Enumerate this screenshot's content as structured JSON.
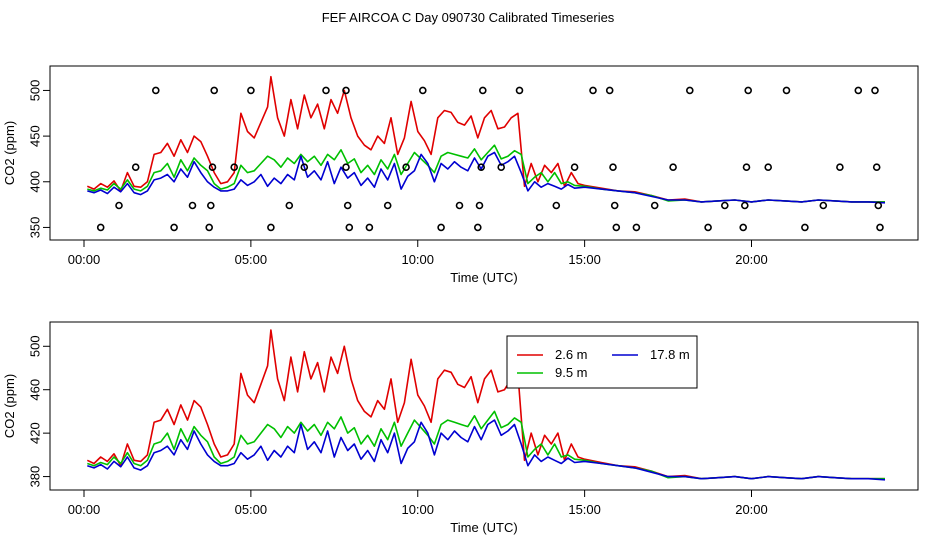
{
  "title": "FEF AIRCOA C  Day 090730  Calibrated Timeseries",
  "colors": {
    "s1": "#e00000",
    "s2": "#00c000",
    "s3": "#0000d0",
    "axis": "#000000"
  },
  "chart_data": [
    {
      "type": "line",
      "title": "FEF AIRCOA C  Day 090730  Calibrated Timeseries",
      "xlabel": "Time (UTC)",
      "ylabel": "CO2 (ppm)",
      "xlim": [
        0,
        24
      ],
      "ylim": [
        345,
        518
      ],
      "x_ticks": [
        0,
        5,
        10,
        15,
        20
      ],
      "x_tick_labels": [
        "00:00",
        "05:00",
        "10:00",
        "15:00",
        "20:00"
      ],
      "y_ticks": [
        350,
        400,
        450,
        500
      ],
      "y_tick_labels": [
        "350",
        "400",
        "450",
        "500"
      ],
      "legend": null,
      "series_ref": "shared",
      "markers": {
        "shape": "open-circle",
        "points": [
          [
            0.5,
            350
          ],
          [
            1.05,
            374
          ],
          [
            1.55,
            416
          ],
          [
            2.15,
            500
          ],
          [
            2.7,
            350
          ],
          [
            3.25,
            374
          ],
          [
            3.75,
            350
          ],
          [
            3.8,
            374
          ],
          [
            3.85,
            416
          ],
          [
            3.9,
            500
          ],
          [
            4.5,
            416
          ],
          [
            5.0,
            500
          ],
          [
            5.6,
            350
          ],
          [
            6.15,
            374
          ],
          [
            6.6,
            416
          ],
          [
            7.25,
            500
          ],
          [
            7.85,
            500
          ],
          [
            7.85,
            416
          ],
          [
            7.9,
            374
          ],
          [
            7.95,
            350
          ],
          [
            8.55,
            350
          ],
          [
            9.1,
            374
          ],
          [
            9.65,
            416
          ],
          [
            10.15,
            500
          ],
          [
            10.7,
            350
          ],
          [
            11.25,
            374
          ],
          [
            11.8,
            350
          ],
          [
            11.85,
            374
          ],
          [
            11.9,
            416
          ],
          [
            11.95,
            500
          ],
          [
            12.5,
            416
          ],
          [
            13.05,
            500
          ],
          [
            13.65,
            350
          ],
          [
            14.15,
            374
          ],
          [
            14.7,
            416
          ],
          [
            15.25,
            500
          ],
          [
            15.75,
            500
          ],
          [
            15.85,
            416
          ],
          [
            15.9,
            374
          ],
          [
            15.95,
            350
          ],
          [
            16.55,
            350
          ],
          [
            17.1,
            374
          ],
          [
            17.65,
            416
          ],
          [
            18.15,
            500
          ],
          [
            18.7,
            350
          ],
          [
            19.2,
            374
          ],
          [
            19.75,
            350
          ],
          [
            19.8,
            374
          ],
          [
            19.85,
            416
          ],
          [
            19.9,
            500
          ],
          [
            20.5,
            416
          ],
          [
            21.05,
            500
          ],
          [
            21.6,
            350
          ],
          [
            22.15,
            374
          ],
          [
            22.65,
            416
          ],
          [
            23.2,
            500
          ],
          [
            23.7,
            500
          ],
          [
            23.75,
            416
          ],
          [
            23.8,
            374
          ],
          [
            23.85,
            350
          ]
        ]
      }
    },
    {
      "type": "line",
      "title": "",
      "xlabel": "Time (UTC)",
      "ylabel": "CO2 (ppm)",
      "xlim": [
        0,
        24
      ],
      "ylim": [
        375,
        515
      ],
      "x_ticks": [
        0,
        5,
        10,
        15,
        20
      ],
      "x_tick_labels": [
        "00:00",
        "05:00",
        "10:00",
        "15:00",
        "20:00"
      ],
      "y_ticks": [
        380,
        420,
        460,
        500
      ],
      "y_tick_labels": [
        "380",
        "420",
        "460",
        "500"
      ],
      "legend": [
        "2.6 m",
        "9.5 m",
        "17.8 m"
      ],
      "legend_position": "top-right",
      "series_ref": "shared"
    }
  ],
  "series": [
    {
      "name": "2.6 m",
      "color": "#e00000",
      "x": [
        0.1,
        0.3,
        0.5,
        0.7,
        0.9,
        1.1,
        1.3,
        1.5,
        1.7,
        1.9,
        2.1,
        2.3,
        2.5,
        2.7,
        2.9,
        3.1,
        3.3,
        3.5,
        3.7,
        3.9,
        4.1,
        4.3,
        4.5,
        4.7,
        4.9,
        5.1,
        5.3,
        5.5,
        5.6,
        5.8,
        6.0,
        6.2,
        6.4,
        6.6,
        6.8,
        7.0,
        7.2,
        7.4,
        7.6,
        7.8,
        8.0,
        8.2,
        8.4,
        8.6,
        8.8,
        9.0,
        9.2,
        9.4,
        9.6,
        9.8,
        10.0,
        10.2,
        10.4,
        10.6,
        10.8,
        11.0,
        11.2,
        11.4,
        11.6,
        11.8,
        12.0,
        12.2,
        12.4,
        12.6,
        12.8,
        13.0,
        13.2,
        13.4,
        13.6,
        13.8,
        14.0,
        14.2,
        14.4,
        14.6,
        14.8,
        15.0,
        15.5,
        16.0,
        16.5,
        17.0,
        17.5,
        18.0,
        18.5,
        19.0,
        19.5,
        20.0,
        20.5,
        21.0,
        21.5,
        22.0,
        22.5,
        23.0,
        23.5,
        24.0
      ],
      "values": [
        395,
        392,
        398,
        394,
        401,
        390,
        410,
        395,
        394,
        400,
        430,
        432,
        442,
        428,
        446,
        432,
        450,
        444,
        428,
        410,
        398,
        400,
        410,
        475,
        455,
        448,
        465,
        482,
        515,
        470,
        450,
        490,
        458,
        495,
        470,
        485,
        458,
        490,
        475,
        500,
        470,
        450,
        440,
        435,
        450,
        442,
        470,
        430,
        448,
        488,
        455,
        445,
        430,
        470,
        478,
        476,
        465,
        462,
        472,
        448,
        470,
        478,
        458,
        460,
        470,
        475,
        395,
        420,
        400,
        418,
        410,
        420,
        395,
        410,
        398,
        396,
        393,
        390,
        389,
        385,
        380,
        381,
        378,
        379,
        380,
        378,
        380,
        379,
        378,
        380,
        379,
        378,
        378,
        378
      ]
    },
    {
      "name": "9.5 m",
      "color": "#00c000",
      "x": [
        0.1,
        0.3,
        0.5,
        0.7,
        0.9,
        1.1,
        1.3,
        1.5,
        1.7,
        1.9,
        2.1,
        2.3,
        2.5,
        2.7,
        2.9,
        3.1,
        3.3,
        3.5,
        3.7,
        3.9,
        4.1,
        4.3,
        4.5,
        4.7,
        4.9,
        5.1,
        5.3,
        5.5,
        5.7,
        5.9,
        6.1,
        6.3,
        6.5,
        6.7,
        6.9,
        7.1,
        7.3,
        7.5,
        7.7,
        7.9,
        8.1,
        8.3,
        8.5,
        8.7,
        8.9,
        9.1,
        9.3,
        9.5,
        9.7,
        9.9,
        10.1,
        10.3,
        10.5,
        10.7,
        10.9,
        11.1,
        11.3,
        11.5,
        11.7,
        11.9,
        12.1,
        12.3,
        12.5,
        12.7,
        12.9,
        13.1,
        13.3,
        13.5,
        13.7,
        13.9,
        14.1,
        14.3,
        14.5,
        14.7,
        15.0,
        15.5,
        16.0,
        16.5,
        17.0,
        17.5,
        18.0,
        18.5,
        19.0,
        19.5,
        20.0,
        20.5,
        21.0,
        21.5,
        22.0,
        22.5,
        23.0,
        23.5,
        24.0
      ],
      "values": [
        392,
        390,
        393,
        391,
        398,
        392,
        402,
        392,
        390,
        395,
        410,
        412,
        420,
        405,
        424,
        412,
        426,
        418,
        412,
        398,
        392,
        394,
        398,
        418,
        410,
        412,
        420,
        428,
        424,
        416,
        426,
        420,
        430,
        422,
        428,
        418,
        430,
        424,
        435,
        420,
        425,
        410,
        418,
        408,
        424,
        414,
        430,
        408,
        420,
        432,
        425,
        418,
        410,
        428,
        432,
        430,
        428,
        426,
        436,
        424,
        432,
        440,
        425,
        428,
        434,
        430,
        398,
        405,
        410,
        400,
        410,
        398,
        400,
        396,
        395,
        392,
        390,
        388,
        385,
        379,
        380,
        378,
        379,
        380,
        378,
        380,
        379,
        378,
        380,
        379,
        378,
        378,
        378
      ]
    },
    {
      "name": "17.8 m",
      "color": "#0000d0",
      "x": [
        0.1,
        0.3,
        0.5,
        0.7,
        0.9,
        1.1,
        1.3,
        1.5,
        1.7,
        1.9,
        2.1,
        2.3,
        2.5,
        2.7,
        2.9,
        3.1,
        3.3,
        3.5,
        3.7,
        3.9,
        4.1,
        4.3,
        4.5,
        4.7,
        4.9,
        5.1,
        5.3,
        5.5,
        5.7,
        5.9,
        6.1,
        6.3,
        6.5,
        6.7,
        6.9,
        7.1,
        7.3,
        7.5,
        7.7,
        7.9,
        8.1,
        8.3,
        8.5,
        8.7,
        8.9,
        9.1,
        9.3,
        9.5,
        9.7,
        9.9,
        10.1,
        10.3,
        10.5,
        10.7,
        10.9,
        11.1,
        11.3,
        11.5,
        11.7,
        11.9,
        12.1,
        12.3,
        12.5,
        12.7,
        12.9,
        13.1,
        13.3,
        13.5,
        13.7,
        13.9,
        14.1,
        14.3,
        14.5,
        14.7,
        15.0,
        15.5,
        16.0,
        16.5,
        17.0,
        17.5,
        18.0,
        18.5,
        19.0,
        19.5,
        20.0,
        20.5,
        21.0,
        21.5,
        22.0,
        22.5,
        23.0,
        23.5,
        24.0
      ],
      "values": [
        390,
        388,
        391,
        387,
        394,
        389,
        398,
        388,
        386,
        390,
        402,
        404,
        408,
        400,
        414,
        405,
        422,
        410,
        400,
        394,
        390,
        390,
        392,
        402,
        396,
        400,
        408,
        395,
        404,
        398,
        408,
        402,
        428,
        405,
        412,
        402,
        422,
        398,
        416,
        404,
        410,
        396,
        404,
        394,
        414,
        402,
        420,
        392,
        406,
        412,
        430,
        420,
        400,
        420,
        414,
        422,
        416,
        412,
        426,
        414,
        428,
        432,
        418,
        422,
        428,
        410,
        390,
        400,
        394,
        398,
        395,
        392,
        397,
        393,
        394,
        392,
        390,
        388,
        384,
        380,
        380,
        378,
        379,
        380,
        378,
        380,
        379,
        378,
        380,
        379,
        378,
        378,
        377
      ]
    }
  ]
}
